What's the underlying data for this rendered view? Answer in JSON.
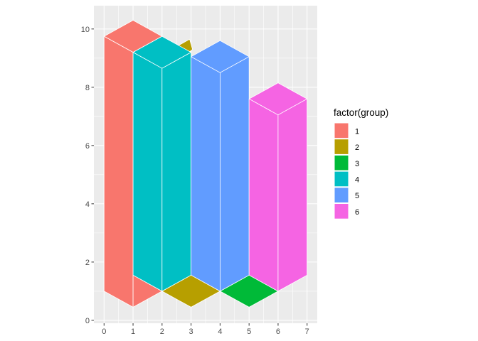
{
  "chart_data": {
    "type": "isometric-bar",
    "x_ticks": [
      "0",
      "1",
      "2",
      "3",
      "4",
      "5",
      "6",
      "7"
    ],
    "y_ticks": [
      "0",
      "2",
      "4",
      "6",
      "8",
      "10"
    ],
    "xlim": [
      -0.35,
      7.35
    ],
    "ylim": [
      -0.1,
      10.8
    ],
    "grid": true,
    "legend": {
      "title": "factor(group)",
      "position": "right",
      "entries": [
        {
          "label": "1",
          "color": "#F8766D"
        },
        {
          "label": "2",
          "color": "#B79F00"
        },
        {
          "label": "3",
          "color": "#00BA38"
        },
        {
          "label": "4",
          "color": "#00BFC4"
        },
        {
          "label": "5",
          "color": "#619CFF"
        },
        {
          "label": "6",
          "color": "#F564E3"
        }
      ]
    },
    "polygons": [
      {
        "group": "2",
        "points": [
          [
            2.05,
            9.15
          ],
          [
            2.95,
            9.65
          ],
          [
            3.05,
            9.3
          ],
          [
            2.25,
            8.65
          ]
        ]
      },
      {
        "group": "1",
        "points": [
          [
            0,
            9.75
          ],
          [
            1,
            10.3
          ],
          [
            2,
            9.75
          ],
          [
            1,
            9.2
          ]
        ]
      },
      {
        "group": "1",
        "points": [
          [
            0,
            9.75
          ],
          [
            1,
            9.2
          ],
          [
            1,
            0.45
          ],
          [
            0,
            1
          ]
        ]
      },
      {
        "group": "1",
        "points": [
          [
            1,
            1.55
          ],
          [
            2,
            1
          ],
          [
            1,
            0.45
          ]
        ]
      },
      {
        "group": "2",
        "points": [
          [
            2,
            1
          ],
          [
            3,
            1.55
          ],
          [
            4,
            1
          ],
          [
            3,
            0.45
          ]
        ]
      },
      {
        "group": "3",
        "points": [
          [
            4,
            1
          ],
          [
            5,
            1.55
          ],
          [
            6,
            1
          ],
          [
            5,
            0.45
          ]
        ]
      },
      {
        "group": "4",
        "points": [
          [
            1,
            9.2
          ],
          [
            2,
            9.75
          ],
          [
            3,
            9.2
          ],
          [
            2,
            8.65
          ]
        ]
      },
      {
        "group": "4",
        "points": [
          [
            1,
            9.2
          ],
          [
            2,
            8.65
          ],
          [
            2,
            1
          ],
          [
            1,
            1.55
          ]
        ]
      },
      {
        "group": "4",
        "points": [
          [
            2,
            8.65
          ],
          [
            3,
            9.2
          ],
          [
            3,
            1.55
          ],
          [
            2,
            1
          ]
        ]
      },
      {
        "group": "5",
        "points": [
          [
            3,
            9.05
          ],
          [
            4,
            9.6
          ],
          [
            5,
            9.05
          ],
          [
            4,
            8.5
          ]
        ]
      },
      {
        "group": "5",
        "points": [
          [
            3,
            9.05
          ],
          [
            4,
            8.5
          ],
          [
            4,
            1
          ],
          [
            3,
            1.55
          ]
        ]
      },
      {
        "group": "5",
        "points": [
          [
            4,
            8.5
          ],
          [
            5,
            9.05
          ],
          [
            5,
            1.55
          ],
          [
            4,
            1
          ]
        ]
      },
      {
        "group": "6",
        "points": [
          [
            5,
            7.6
          ],
          [
            6,
            8.15
          ],
          [
            7,
            7.6
          ],
          [
            6,
            7.05
          ]
        ]
      },
      {
        "group": "6",
        "points": [
          [
            5,
            7.6
          ],
          [
            6,
            7.05
          ],
          [
            6,
            1
          ],
          [
            5,
            1.55
          ]
        ]
      },
      {
        "group": "6",
        "points": [
          [
            6,
            7.05
          ],
          [
            7,
            7.6
          ],
          [
            7,
            1.55
          ],
          [
            6,
            1
          ]
        ]
      }
    ]
  }
}
